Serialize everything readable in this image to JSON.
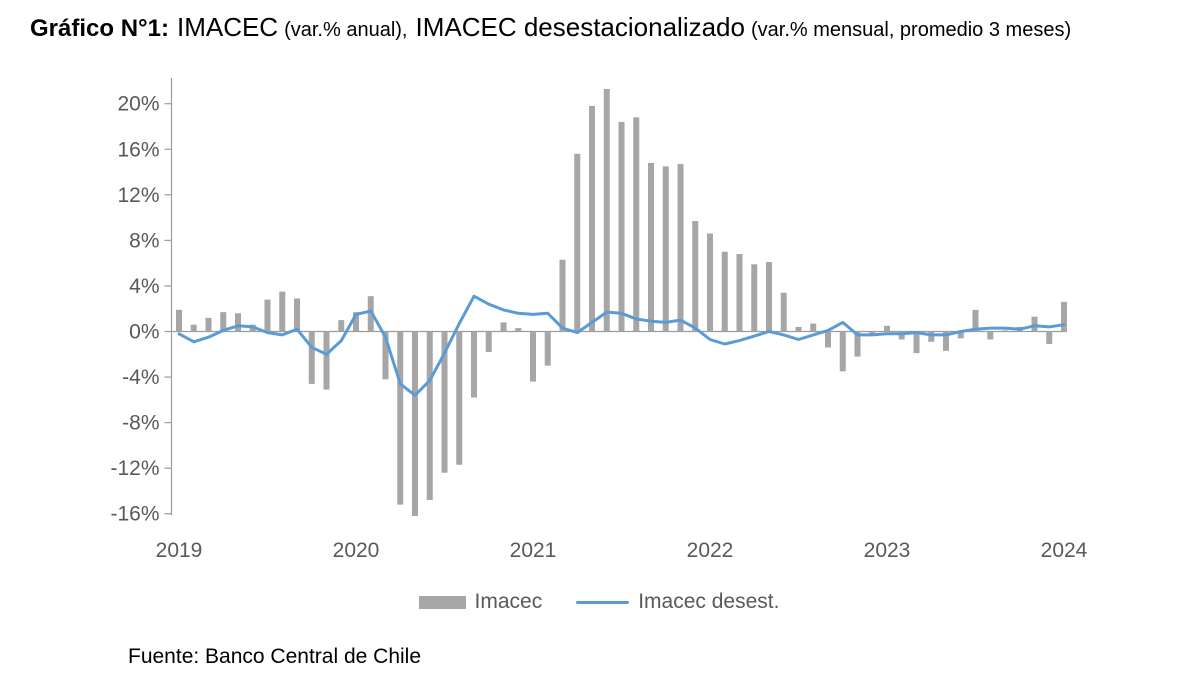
{
  "title": {
    "prefix": "Gráfico N°1:",
    "series1": "IMACEC",
    "series1_note": "(var.% anual),",
    "series2": "IMACEC desestacionalizado",
    "series2_note": "(var.% mensual, promedio 3 meses)"
  },
  "legend": {
    "bar_label": "Imacec",
    "line_label": "Imacec desest."
  },
  "source": "Fuente: Banco Central de Chile",
  "colors": {
    "bar": "#a6a6a6",
    "line": "#5b9bd5",
    "axis": "#9b9b9b",
    "tick_text": "#595959"
  },
  "chart_data": {
    "type": "bar+line",
    "title": "IMACEC (var.% anual) e IMACEC desestacionalizado (var.% mensual, promedio 3 meses)",
    "x": [
      "2019-01",
      "2019-02",
      "2019-03",
      "2019-04",
      "2019-05",
      "2019-06",
      "2019-07",
      "2019-08",
      "2019-09",
      "2019-10",
      "2019-11",
      "2019-12",
      "2020-01",
      "2020-02",
      "2020-03",
      "2020-04",
      "2020-05",
      "2020-06",
      "2020-07",
      "2020-08",
      "2020-09",
      "2020-10",
      "2020-11",
      "2020-12",
      "2021-01",
      "2021-02",
      "2021-03",
      "2021-04",
      "2021-05",
      "2021-06",
      "2021-07",
      "2021-08",
      "2021-09",
      "2021-10",
      "2021-11",
      "2021-12",
      "2022-01",
      "2022-02",
      "2022-03",
      "2022-04",
      "2022-05",
      "2022-06",
      "2022-07",
      "2022-08",
      "2022-09",
      "2022-10",
      "2022-11",
      "2022-12",
      "2023-01",
      "2023-02",
      "2023-03",
      "2023-04",
      "2023-05",
      "2023-06",
      "2023-07",
      "2023-08",
      "2023-09",
      "2023-10",
      "2023-11",
      "2023-12",
      "2024-01"
    ],
    "series": [
      {
        "name": "Imacec",
        "type": "bar",
        "values": [
          1.9,
          0.6,
          1.2,
          1.7,
          1.6,
          0.6,
          2.8,
          3.5,
          2.9,
          -4.6,
          -5.1,
          1.0,
          1.7,
          3.1,
          -4.2,
          -15.2,
          -16.2,
          -14.8,
          -12.4,
          -11.7,
          -5.8,
          -1.8,
          0.8,
          0.3,
          -4.4,
          -3.0,
          6.3,
          15.6,
          19.8,
          21.3,
          18.4,
          18.8,
          14.8,
          14.5,
          14.7,
          9.7,
          8.6,
          7.0,
          6.8,
          5.9,
          6.1,
          3.4,
          0.4,
          0.7,
          -1.4,
          -3.5,
          -2.2,
          -0.4,
          0.5,
          -0.7,
          -1.9,
          -0.9,
          -1.7,
          -0.6,
          1.9,
          -0.7,
          0.1,
          0.4,
          1.3,
          -1.1,
          2.6
        ]
      },
      {
        "name": "Imacec desest.",
        "type": "line",
        "values": [
          -0.2,
          -0.9,
          -0.5,
          0.1,
          0.5,
          0.4,
          -0.1,
          -0.3,
          0.2,
          -1.4,
          -2.0,
          -0.8,
          1.5,
          1.8,
          -0.5,
          -4.6,
          -5.6,
          -4.3,
          -1.9,
          0.7,
          3.1,
          2.4,
          1.9,
          1.6,
          1.5,
          1.6,
          0.3,
          -0.1,
          0.8,
          1.7,
          1.6,
          1.1,
          0.9,
          0.8,
          1.0,
          0.3,
          -0.7,
          -1.1,
          -0.8,
          -0.4,
          0.0,
          -0.3,
          -0.7,
          -0.3,
          0.1,
          0.8,
          -0.3,
          -0.3,
          -0.2,
          -0.2,
          -0.1,
          -0.3,
          -0.3,
          0.0,
          0.2,
          0.3,
          0.3,
          0.2,
          0.5,
          0.4,
          0.6
        ]
      }
    ],
    "y_ticks": [
      20,
      16,
      12,
      8,
      4,
      0,
      -4,
      -8,
      -12,
      -16
    ],
    "y_tick_labels": [
      "20%",
      "16%",
      "12%",
      "8%",
      "4%",
      "0%",
      "-4%",
      "-8%",
      "-12%",
      "-16%"
    ],
    "x_tick_labels": [
      "2019",
      "2020",
      "2021",
      "2022",
      "2023",
      "2024"
    ],
    "ylim": [
      -16,
      22
    ],
    "grid": false,
    "legend_position": "bottom"
  }
}
